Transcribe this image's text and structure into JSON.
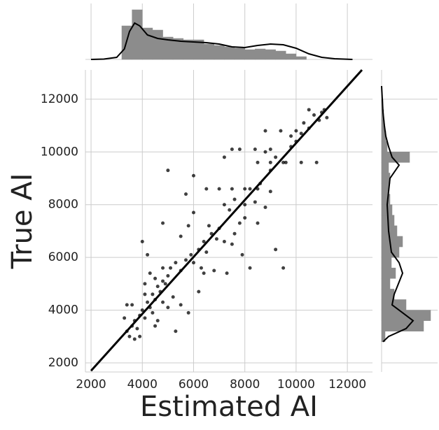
{
  "chart_data": {
    "type": "jointplot",
    "xlabel": "Estimated AI",
    "ylabel": "True AI",
    "xlim": [
      1780,
      12980
    ],
    "ylim": [
      1655,
      13110
    ],
    "xticks": [
      2000,
      4000,
      6000,
      8000,
      10000,
      12000
    ],
    "yticks": [
      2000,
      4000,
      6000,
      8000,
      10000,
      12000
    ],
    "grid": true,
    "color": "#000000",
    "hist_color": "#8c8c8c",
    "fit_line": {
      "x": [
        2000,
        12570
      ],
      "y": [
        1700,
        13110
      ]
    },
    "points": [
      [
        3500,
        3000
      ],
      [
        3600,
        3400
      ],
      [
        3700,
        3600
      ],
      [
        3800,
        3300
      ],
      [
        3900,
        3800
      ],
      [
        4000,
        4000
      ],
      [
        4100,
        3700
      ],
      [
        4200,
        4300
      ],
      [
        4300,
        4100
      ],
      [
        4400,
        4600
      ],
      [
        4500,
        4400
      ],
      [
        4600,
        4900
      ],
      [
        4700,
        4700
      ],
      [
        4800,
        5100
      ],
      [
        4900,
        5000
      ],
      [
        5000,
        5300
      ],
      [
        3300,
        3700
      ],
      [
        3400,
        3200
      ],
      [
        3600,
        4200
      ],
      [
        4100,
        4600
      ],
      [
        4400,
        3900
      ],
      [
        4800,
        4300
      ],
      [
        5200,
        4500
      ],
      [
        5500,
        4200
      ],
      [
        5800,
        3900
      ],
      [
        5100,
        5600
      ],
      [
        5300,
        5800
      ],
      [
        5500,
        5500
      ],
      [
        5700,
        5900
      ],
      [
        5900,
        6100
      ],
      [
        6000,
        5800
      ],
      [
        6200,
        6300
      ],
      [
        6400,
        6600
      ],
      [
        6500,
        6200
      ],
      [
        6700,
        6900
      ],
      [
        6900,
        6700
      ],
      [
        7000,
        7100
      ],
      [
        6600,
        7200
      ],
      [
        6300,
        5600
      ],
      [
        6800,
        5500
      ],
      [
        7200,
        6600
      ],
      [
        7500,
        6500
      ],
      [
        7900,
        6100
      ],
      [
        7300,
        5400
      ],
      [
        8200,
        5600
      ],
      [
        9200,
        6300
      ],
      [
        9500,
        5600
      ],
      [
        7600,
        6900
      ],
      [
        7800,
        7300
      ],
      [
        8000,
        7500
      ],
      [
        7400,
        7800
      ],
      [
        7200,
        8000
      ],
      [
        7600,
        8200
      ],
      [
        8000,
        8000
      ],
      [
        8400,
        8100
      ],
      [
        8800,
        7900
      ],
      [
        8200,
        8600
      ],
      [
        8600,
        8800
      ],
      [
        9000,
        8500
      ],
      [
        6500,
        8600
      ],
      [
        6000,
        7700
      ],
      [
        5800,
        7200
      ],
      [
        5500,
        6800
      ],
      [
        9000,
        9300
      ],
      [
        8500,
        9600
      ],
      [
        8800,
        10000
      ],
      [
        9200,
        9800
      ],
      [
        9500,
        9600
      ],
      [
        9800,
        10200
      ],
      [
        10000,
        10400
      ],
      [
        10200,
        10700
      ],
      [
        10500,
        10900
      ],
      [
        10300,
        11100
      ],
      [
        10700,
        11400
      ],
      [
        11000,
        11500
      ],
      [
        10900,
        11200
      ],
      [
        11100,
        11600
      ],
      [
        11200,
        11300
      ],
      [
        10500,
        11600
      ],
      [
        9800,
        10600
      ],
      [
        7500,
        10100
      ],
      [
        7200,
        9800
      ],
      [
        6000,
        9100
      ],
      [
        5000,
        9300
      ],
      [
        5700,
        8400
      ],
      [
        4800,
        7300
      ],
      [
        4200,
        6100
      ],
      [
        4000,
        6600
      ],
      [
        3400,
        4200
      ],
      [
        3700,
        2900
      ],
      [
        4500,
        3400
      ],
      [
        5000,
        4100
      ],
      [
        5300,
        3200
      ],
      [
        6200,
        4700
      ],
      [
        4800,
        5600
      ],
      [
        4500,
        5200
      ],
      [
        4100,
        5000
      ],
      [
        4300,
        5400
      ],
      [
        4600,
        3600
      ],
      [
        3900,
        3000
      ],
      [
        7000,
        8600
      ],
      [
        7500,
        8600
      ],
      [
        8000,
        8600
      ],
      [
        8500,
        8600
      ],
      [
        9000,
        9600
      ],
      [
        9600,
        9600
      ],
      [
        10200,
        9600
      ],
      [
        10800,
        9600
      ],
      [
        7800,
        10100
      ],
      [
        8400,
        10100
      ],
      [
        9000,
        10100
      ],
      [
        8800,
        10800
      ],
      [
        9400,
        10800
      ],
      [
        10000,
        10800
      ],
      [
        6400,
        5400
      ],
      [
        8500,
        7300
      ]
    ],
    "top_hist": {
      "bins": [
        3200,
        3600,
        4000,
        4400,
        4800,
        5200,
        5600,
        6000,
        6400,
        6800,
        7200,
        7600,
        8000,
        8400,
        8800,
        9200,
        9600,
        10000,
        10400
      ],
      "counts": [
        48,
        71,
        45,
        42,
        32,
        30,
        28,
        28,
        22,
        20,
        18,
        16,
        14,
        15,
        14,
        12,
        8,
        4
      ],
      "lim": [
        0,
        80
      ]
    },
    "top_kde": {
      "x": [
        2000,
        2500,
        3000,
        3300,
        3500,
        3700,
        3900,
        4200,
        4600,
        5000,
        5500,
        6000,
        6500,
        7000,
        7500,
        8000,
        8500,
        9000,
        9500,
        10000,
        10500,
        11000,
        11500,
        12200
      ],
      "values": [
        0,
        0.5,
        3,
        15,
        40,
        52,
        48,
        35,
        30,
        28,
        26,
        25,
        24,
        22,
        18,
        17,
        20,
        22,
        21,
        16,
        8,
        3,
        1,
        0
      ]
    },
    "right_hist": {
      "bins": [
        2800,
        3200,
        3600,
        4000,
        4400,
        4800,
        5200,
        5600,
        6000,
        6400,
        6800,
        7200,
        7600,
        8000,
        8400,
        8800,
        9200,
        9600,
        10000,
        10400,
        10800,
        11200,
        11600,
        12000
      ],
      "counts": [
        5,
        60,
        70,
        35,
        18,
        12,
        20,
        14,
        25,
        30,
        22,
        18,
        15,
        12,
        10,
        12,
        10,
        40,
        8,
        6,
        4,
        3,
        2
      ],
      "lim": [
        0,
        80
      ]
    },
    "right_kde": {
      "y": [
        2800,
        3000,
        3300,
        3600,
        3900,
        4200,
        4600,
        5000,
        5400,
        5800,
        6200,
        6600,
        7000,
        7500,
        8000,
        8500,
        9000,
        9500,
        9800,
        10200,
        10600,
        11000,
        11500,
        12000,
        12500
      ],
      "values": [
        2,
        10,
        35,
        45,
        30,
        15,
        18,
        24,
        30,
        25,
        14,
        12,
        10,
        9,
        8,
        10,
        12,
        25,
        15,
        10,
        6,
        4,
        2,
        1,
        0
      ]
    }
  }
}
